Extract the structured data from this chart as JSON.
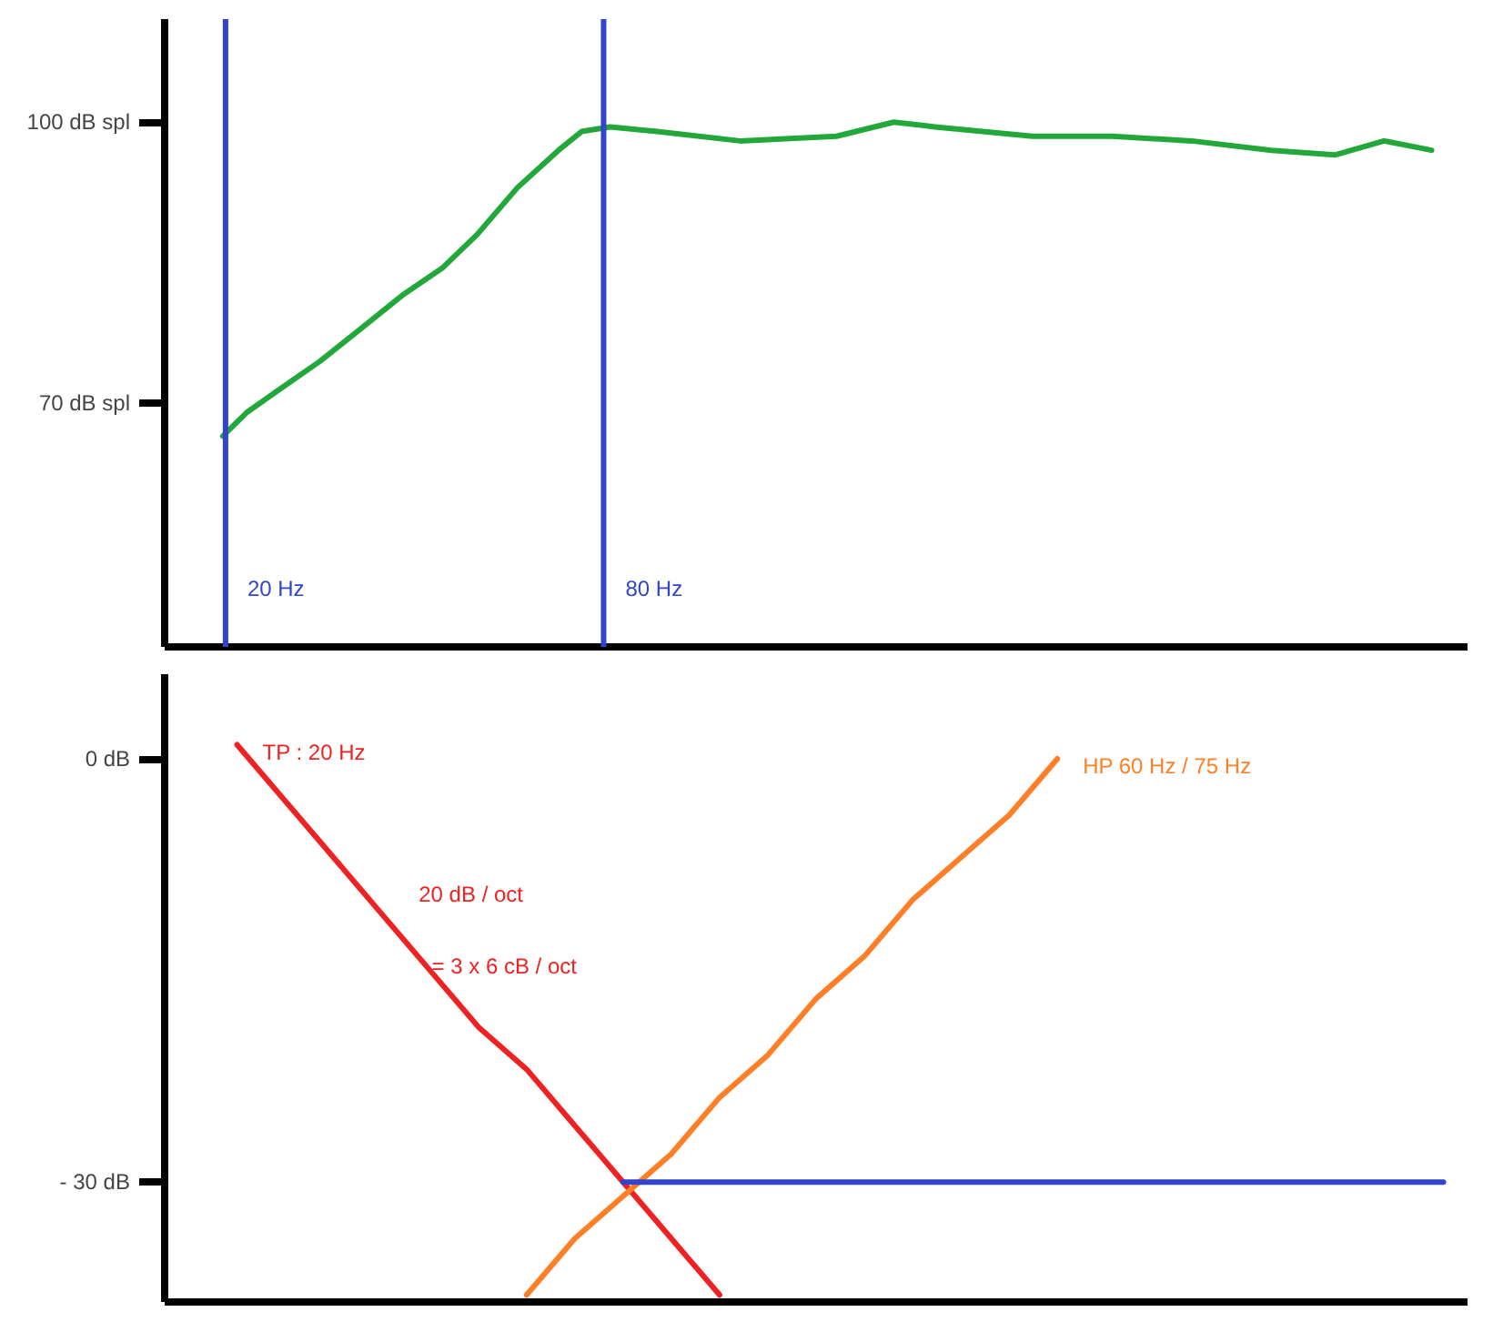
{
  "chart_data": [
    {
      "type": "line",
      "log": "x",
      "grid": false,
      "xlim": [
        16,
        1900
      ],
      "ylim": [
        44,
        111
      ],
      "yticks": [
        {
          "value": 70,
          "label": "70 dB spl"
        },
        {
          "value": 100,
          "label": "100 dB spl"
        }
      ],
      "series": [
        {
          "color": "#22a83a",
          "x": [
            19.8,
            21.6,
            24.4,
            28.3,
            32.9,
            38.2,
            44.4,
            50.3,
            58.3,
            67.8,
            73.8,
            81.9,
            97.3,
            131.9,
            187.9,
            231.9,
            269.6,
            385.4,
            516.1,
            691.3,
            925.9,
            1168,
            1399,
            1666
          ],
          "values": [
            66.5,
            69,
            71.5,
            74.5,
            78,
            81.5,
            84.5,
            88,
            93,
            97,
            99,
            99.5,
            99,
            98,
            98.5,
            100,
            99.5,
            98.5,
            98.5,
            98,
            97,
            96.5,
            98,
            97
          ]
        }
      ],
      "ref_lines": [
        {
          "axis": "x",
          "value": 20,
          "label": "20 Hz",
          "color": "#3344cc"
        },
        {
          "axis": "x",
          "value": 80,
          "label": "80 Hz",
          "color": "#3344cc"
        }
      ]
    },
    {
      "type": "line",
      "grid": false,
      "ylim": [
        -38.5,
        6
      ],
      "categories": [
        null,
        null,
        null,
        null,
        null,
        null,
        null,
        null,
        null,
        null,
        null,
        null,
        null,
        null,
        null,
        null,
        null,
        null,
        null,
        null,
        null,
        null,
        null,
        null,
        null,
        null,
        null
      ],
      "yticks": [
        {
          "value": -30,
          "label": "- 30 dB"
        },
        {
          "value": 0,
          "label": "0 dB"
        }
      ],
      "series": [
        {
          "name": "TP : 20 Hz",
          "color": "#ee2222",
          "values": [
            null,
            1,
            -3,
            -7,
            -11,
            -15,
            -19,
            -22,
            -26,
            -30,
            -34,
            -38,
            null,
            null,
            null,
            null,
            null,
            null,
            null,
            null,
            null,
            null,
            null,
            null,
            null,
            null,
            null
          ]
        },
        {
          "name": "HP 60 Hz / 75 Hz",
          "color": "#ff7f27",
          "values": [
            null,
            null,
            null,
            null,
            null,
            null,
            null,
            -38,
            -34,
            -31,
            -28,
            -24,
            -21,
            -17,
            -14,
            -10,
            -7,
            -4,
            0,
            null,
            null,
            null,
            null,
            null,
            null,
            null,
            null
          ]
        },
        {
          "color": "#3344cc",
          "values": [
            null,
            null,
            null,
            null,
            null,
            null,
            null,
            null,
            null,
            -30,
            -30,
            -30,
            -30,
            -30,
            -30,
            -30,
            -30,
            -30,
            -30,
            -30,
            -30,
            -30,
            -30,
            -30,
            -30,
            -30,
            -30
          ]
        }
      ],
      "annotations": [
        "20 dB / oct",
        "= 3 x 6 cB / oct"
      ]
    }
  ]
}
